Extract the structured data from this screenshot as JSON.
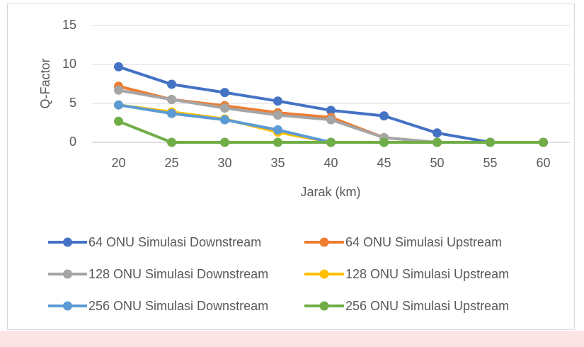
{
  "chart_data": {
    "type": "line",
    "x_label": "Jarak (km)",
    "y_label": "Q-Factor",
    "categories": [
      "20",
      "25",
      "30",
      "35",
      "40",
      "45",
      "50",
      "55",
      "60"
    ],
    "ylim": [
      0,
      15
    ],
    "yticks": [
      0,
      5,
      10,
      15
    ],
    "grid": true,
    "legend_position": "bottom",
    "series": [
      {
        "name": "64 ONU Simulasi Downstream",
        "color": "#4472c4",
        "values": [
          9.7,
          7.45,
          6.4,
          5.3,
          4.1,
          3.4,
          1.2,
          0,
          0
        ]
      },
      {
        "name": "64 ONU Simulasi Upstream",
        "color": "#ed7d31",
        "values": [
          7.2,
          5.5,
          4.7,
          3.8,
          3.2,
          0.6,
          0,
          0,
          0
        ]
      },
      {
        "name": "128 ONU Simulasi Downstream",
        "color": "#a5a5a5",
        "values": [
          6.7,
          5.5,
          4.4,
          3.5,
          2.9,
          0.6,
          0,
          0,
          0
        ]
      },
      {
        "name": "128 ONU Simulasi Upstream",
        "color": "#ffc000",
        "values": [
          4.8,
          3.9,
          3.0,
          1.3,
          0,
          0,
          0,
          0,
          0
        ]
      },
      {
        "name": "256 ONU Simulasi Downstream",
        "color": "#5b9bd5",
        "values": [
          4.8,
          3.7,
          2.9,
          1.6,
          0,
          0,
          0,
          0,
          0
        ]
      },
      {
        "name": "256 ONU Simulasi Upstream",
        "color": "#70ad47",
        "values": [
          2.7,
          0,
          0,
          0,
          0,
          0,
          0,
          0,
          0
        ]
      }
    ]
  }
}
